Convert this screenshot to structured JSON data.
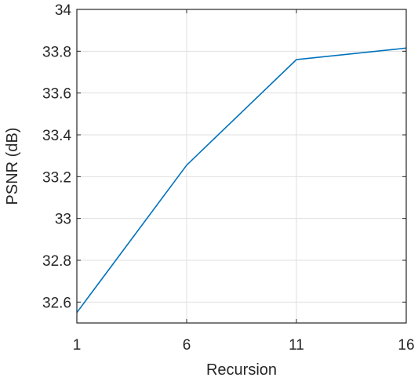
{
  "chart_data": {
    "type": "line",
    "title": "",
    "xlabel": "Recursion",
    "ylabel": "PSNR (dB)",
    "x": [
      1,
      6,
      11,
      16
    ],
    "series": [
      {
        "values": [
          32.55,
          33.255,
          33.76,
          33.815
        ],
        "color": "#0072BD"
      }
    ],
    "xlim": [
      1,
      16
    ],
    "ylim": [
      32.5,
      34
    ],
    "xticks": [
      1,
      6,
      11,
      16
    ],
    "xtick_labels": [
      "1",
      "6",
      "11",
      "16"
    ],
    "yticks": [
      32.6,
      32.8,
      33,
      33.2,
      33.4,
      33.6,
      33.8,
      34
    ],
    "ytick_labels": [
      "32.6",
      "32.8",
      "33",
      "33.2",
      "33.4",
      "33.6",
      "33.8",
      "34"
    ],
    "grid": true,
    "legend": "none"
  }
}
